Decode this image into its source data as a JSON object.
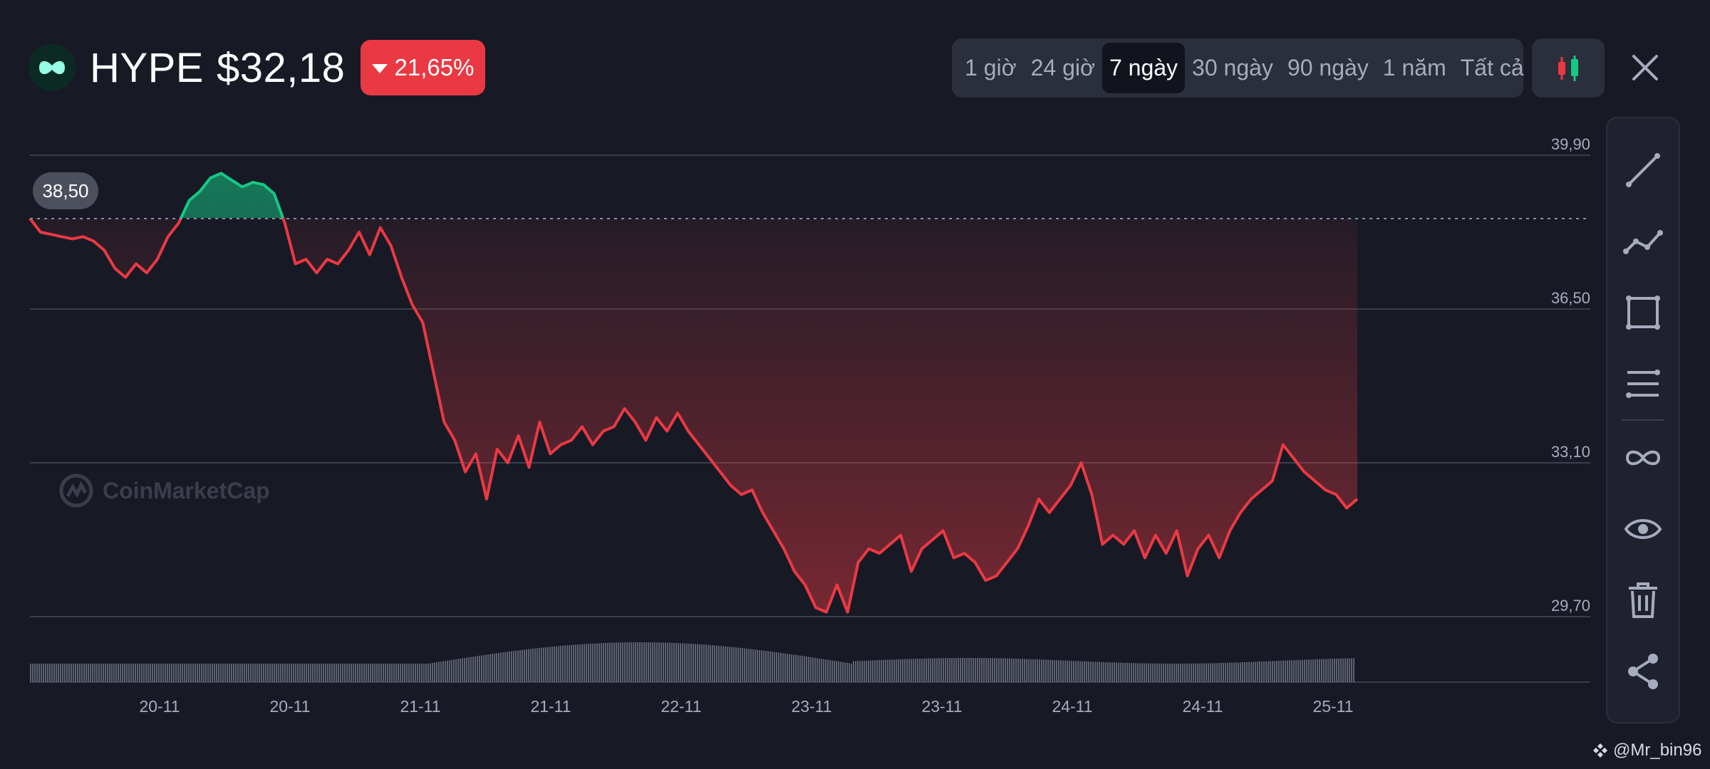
{
  "header": {
    "symbol": "HYPE",
    "price": "$32,18",
    "change": "21,65%",
    "change_direction": "down",
    "change_color": "#ea3943",
    "coin_icon": "hyperliquid-logo-icon"
  },
  "time_ranges": [
    {
      "label": "1 giờ",
      "active": false
    },
    {
      "label": "24 giờ",
      "active": false
    },
    {
      "label": "7 ngày",
      "active": true
    },
    {
      "label": "30 ngày",
      "active": false
    },
    {
      "label": "90 ngày",
      "active": false
    },
    {
      "label": "1 năm",
      "active": false
    },
    {
      "label": "Tất cả",
      "active": false
    }
  ],
  "toolbar": {
    "chart_type_icon": "candlestick-icon",
    "close_icon": "close-icon",
    "tools": [
      {
        "name": "trend-line-icon"
      },
      {
        "name": "polyline-icon"
      },
      {
        "name": "rectangle-icon"
      },
      {
        "name": "parallel-lines-icon"
      },
      {
        "name": "infinity-icon"
      },
      {
        "name": "eye-icon"
      },
      {
        "name": "trash-icon"
      },
      {
        "name": "share-icon"
      }
    ]
  },
  "watermark": "CoinMarketCap",
  "credit": "@Mr_bin96",
  "colors": {
    "background": "#171a25",
    "up": "#16c784",
    "down": "#ea3943",
    "grid": "#3a3d4b",
    "axis_text": "#a6abbd"
  },
  "chart_data": {
    "type": "line",
    "reference_value": "38,50",
    "y_ticks": [
      "39,90",
      "36,50",
      "33,10",
      "29,70"
    ],
    "ylim": [
      29.7,
      39.9
    ],
    "x_tick_labels": [
      "20-11",
      "20-11",
      "21-11",
      "21-11",
      "22-11",
      "23-11",
      "23-11",
      "24-11",
      "24-11",
      "25-11"
    ],
    "grid": true,
    "legend": "none",
    "series": [
      {
        "values": [
          38.5,
          38.2,
          38.15,
          38.1,
          38.05,
          38.1,
          38.0,
          37.8,
          37.4,
          37.2,
          37.5,
          37.3,
          37.6,
          38.1,
          38.4,
          38.9,
          39.1,
          39.4,
          39.5,
          39.35,
          39.2,
          39.3,
          39.25,
          39.05,
          38.4,
          37.5,
          37.6,
          37.3,
          37.6,
          37.5,
          37.8,
          38.2,
          37.7,
          38.3,
          37.9,
          37.2,
          36.6,
          36.2,
          35.1,
          34.0,
          33.6,
          32.9,
          33.3,
          32.3,
          33.4,
          33.1,
          33.7,
          33.0,
          34.0,
          33.3,
          33.5,
          33.6,
          33.9,
          33.5,
          33.8,
          33.9,
          34.3,
          34.0,
          33.6,
          34.1,
          33.8,
          34.2,
          33.8,
          33.5,
          33.2,
          32.9,
          32.6,
          32.4,
          32.5,
          32.0,
          31.6,
          31.2,
          30.7,
          30.4,
          29.9,
          29.8,
          30.4,
          29.8,
          30.9,
          31.2,
          31.1,
          31.3,
          31.5,
          30.7,
          31.2,
          31.4,
          31.6,
          31.0,
          31.1,
          30.9,
          30.5,
          30.6,
          30.9,
          31.2,
          31.7,
          32.3,
          32.0,
          32.3,
          32.6,
          33.1,
          32.4,
          31.3,
          31.5,
          31.3,
          31.6,
          31.0,
          31.5,
          31.1,
          31.6,
          30.6,
          31.2,
          31.5,
          31.0,
          31.6,
          32.0,
          32.3,
          32.5,
          32.7,
          33.5,
          33.2,
          32.9,
          32.7,
          32.5,
          32.4,
          32.1,
          32.3
        ]
      }
    ]
  }
}
